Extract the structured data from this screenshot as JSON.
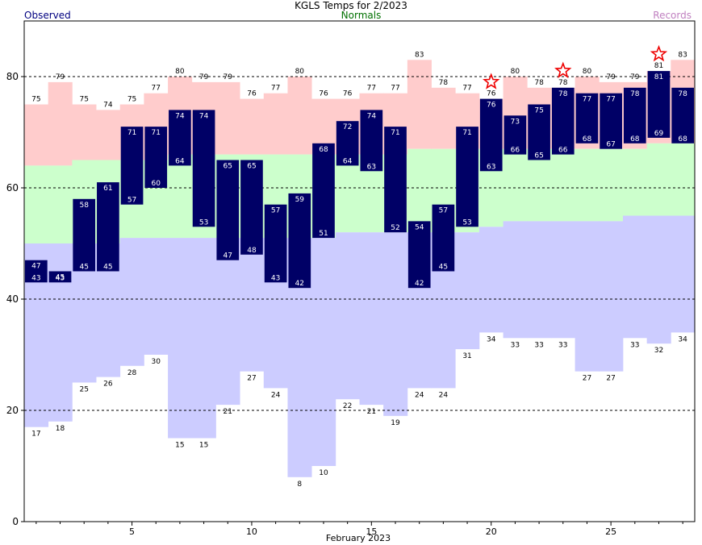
{
  "header": {
    "title": "KGLS Temps for 2/2023",
    "observed_label": "Observed",
    "normals_label": "Normals",
    "records_label": "Records"
  },
  "chart_data": {
    "type": "bar",
    "title": "KGLS Temps for 2/2023",
    "xlabel": "February 2023",
    "ylabel": "",
    "ylim": [
      0,
      90
    ],
    "yticks": [
      0,
      20,
      40,
      60,
      80
    ],
    "xticks": [
      5,
      10,
      15,
      20,
      25
    ],
    "grid": "dashed horizontal lines at 20, 40, 60, 80",
    "days": [
      1,
      2,
      3,
      4,
      5,
      6,
      7,
      8,
      9,
      10,
      11,
      12,
      13,
      14,
      15,
      16,
      17,
      18,
      19,
      20,
      21,
      22,
      23,
      24,
      25,
      26,
      27,
      28
    ],
    "series": [
      {
        "name": "Observed",
        "kind": "high",
        "values": [
          47,
          45,
          58,
          61,
          71,
          71,
          74,
          74,
          65,
          65,
          57,
          59,
          68,
          72,
          74,
          71,
          54,
          57,
          71,
          76,
          73,
          75,
          78,
          77,
          77,
          78,
          81,
          78
        ]
      },
      {
        "name": "Observed",
        "kind": "low",
        "values": [
          43,
          43,
          45,
          45,
          57,
          60,
          64,
          53,
          47,
          48,
          43,
          42,
          51,
          64,
          63,
          52,
          42,
          45,
          53,
          63,
          66,
          65,
          66,
          68,
          67,
          68,
          69,
          68
        ]
      },
      {
        "name": "Normals",
        "kind": "high",
        "values": [
          64,
          64,
          65,
          65,
          65,
          65,
          66,
          66,
          66,
          66,
          66,
          66,
          66,
          66,
          66,
          66,
          67,
          67,
          67,
          67,
          67,
          67,
          67,
          67,
          67,
          67,
          68,
          68
        ]
      },
      {
        "name": "Normals",
        "kind": "low",
        "values": [
          50,
          50,
          50,
          50,
          51,
          51,
          51,
          51,
          51,
          51,
          51,
          51,
          51,
          52,
          52,
          52,
          52,
          52,
          52,
          53,
          54,
          54,
          54,
          54,
          54,
          55,
          55,
          55
        ]
      },
      {
        "name": "Records",
        "kind": "high",
        "values": [
          75,
          79,
          75,
          74,
          75,
          77,
          80,
          79,
          79,
          76,
          77,
          80,
          76,
          76,
          77,
          77,
          83,
          78,
          77,
          76,
          80,
          78,
          78,
          80,
          79,
          79,
          81,
          83
        ]
      },
      {
        "name": "Records",
        "kind": "low",
        "values": [
          17,
          18,
          25,
          26,
          28,
          30,
          15,
          15,
          21,
          27,
          24,
          8,
          10,
          22,
          21,
          19,
          24,
          24,
          31,
          34,
          33,
          33,
          33,
          27,
          27,
          33,
          32,
          34
        ]
      }
    ],
    "record_stars": [
      20,
      23,
      27
    ],
    "colors": {
      "observed": "#000066",
      "observed_text": "#ffffff",
      "normals": "#ccffcc",
      "record_high": "#ffcccc",
      "record_low": "#ccccff",
      "star": "#ee0000",
      "grid": "#000000"
    }
  }
}
